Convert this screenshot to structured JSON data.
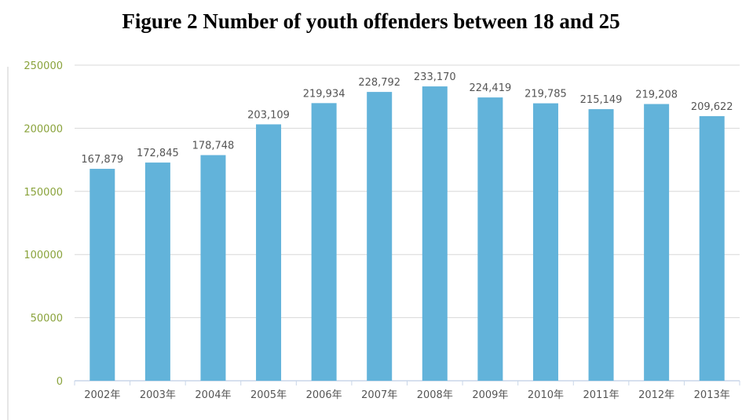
{
  "title": "Figure 2 Number of youth offenders between 18 and 25",
  "chart_data": {
    "type": "bar",
    "categories": [
      "2002年",
      "2003年",
      "2004年",
      "2005年",
      "2006年",
      "2007年",
      "2008年",
      "2009年",
      "2010年",
      "2011年",
      "2012年",
      "2013年"
    ],
    "values": [
      167879,
      172845,
      178748,
      203109,
      219934,
      228792,
      233170,
      224419,
      219785,
      215149,
      219208,
      209622
    ],
    "data_labels": [
      "167,879",
      "172,845",
      "178,748",
      "203,109",
      "219,934",
      "228,792",
      "233,170",
      "224,419",
      "219,785",
      "215,149",
      "219,208",
      "209,622"
    ],
    "yticks": [
      0,
      50000,
      100000,
      150000,
      200000,
      250000
    ],
    "ylim": [
      0,
      250000
    ],
    "grid": true,
    "bar_color": "#62b3da",
    "title": "Figure 2 Number of youth offenders between 18 and 25"
  }
}
